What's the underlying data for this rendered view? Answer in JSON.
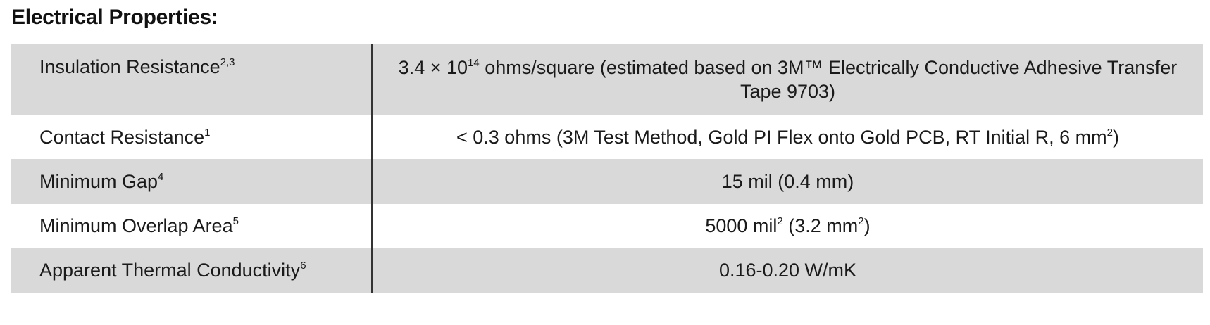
{
  "section_title": "Electrical Properties:",
  "rows": [
    {
      "label": "Insulation Resistance",
      "label_sup": "2,3",
      "value_pre": "3.4 × 10",
      "value_sup": "14",
      "value_post": " ohms/square (estimated based on 3M™ Electrically Conductive Adhesive Transfer Tape 9703)"
    },
    {
      "label": "Contact Resistance",
      "label_sup": "1",
      "value_pre": "< 0.3 ohms (3M Test Method, Gold PI Flex onto Gold PCB, RT Initial R, 6 mm",
      "value_sup": "2",
      "value_post": ")"
    },
    {
      "label": "Minimum Gap",
      "label_sup": "4",
      "value": "15 mil (0.4 mm)"
    },
    {
      "label": "Minimum Overlap Area",
      "label_sup": "5",
      "value_a": "5000 mil",
      "value_a_sup": "2",
      "value_b": " (3.2 mm",
      "value_b_sup": "2",
      "value_c": ")"
    },
    {
      "label": "Apparent Thermal Conductivity",
      "label_sup": "6",
      "value": "0.16-0.20 W/mK"
    }
  ]
}
